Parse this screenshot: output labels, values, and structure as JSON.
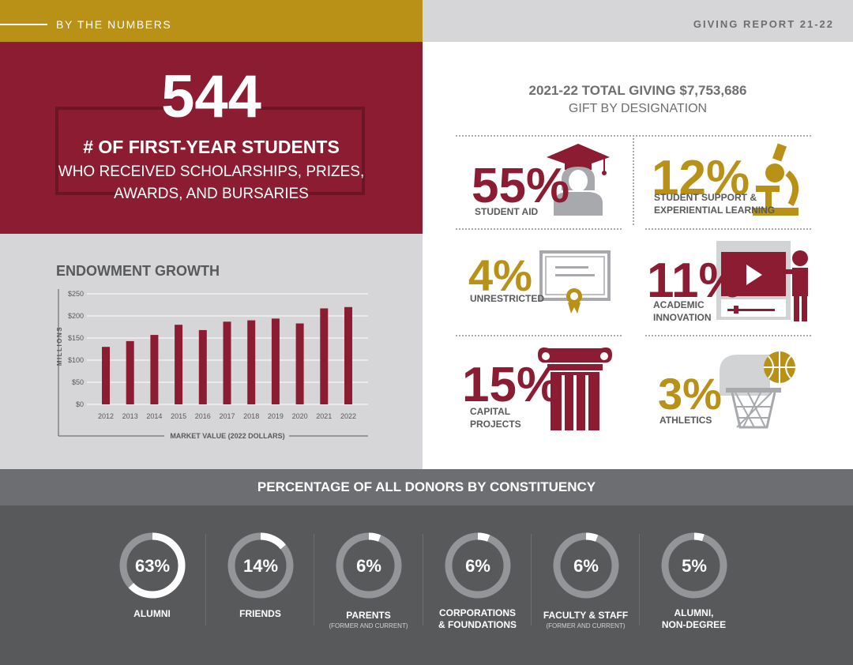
{
  "header": {
    "left_label": "BY THE NUMBERS",
    "right_label": "GIVING REPORT 21-22"
  },
  "hero": {
    "number": "544",
    "line1": "# OF FIRST-YEAR STUDENTS",
    "line2": "WHO RECEIVED SCHOLARSHIPS, PRIZES,",
    "line3": "AWARDS, AND BURSARIES"
  },
  "giving": {
    "title": "2021-22 TOTAL GIVING $7,753,686",
    "subtitle": "GIFT BY DESIGNATION",
    "items": [
      {
        "pct": "55%",
        "label1": "STUDENT AID",
        "label2": "",
        "icon": "graduate-icon"
      },
      {
        "pct": "12%",
        "label1": "STUDENT SUPPORT &",
        "label2": "EXPERIENTIAL LEARNING",
        "icon": "microscope-icon"
      },
      {
        "pct": "4%",
        "label1": "UNRESTRICTED",
        "label2": "",
        "icon": "certificate-icon"
      },
      {
        "pct": "11%",
        "label1": "ACADEMIC",
        "label2": "INNOVATION",
        "icon": "presentation-icon"
      },
      {
        "pct": "15%",
        "label1": "CAPITAL",
        "label2": "PROJECTS",
        "icon": "column-icon"
      },
      {
        "pct": "3%",
        "label1": "ATHLETICS",
        "label2": "",
        "icon": "basketball-icon"
      }
    ]
  },
  "chart_data": {
    "type": "bar",
    "title": "ENDOWMENT GROWTH",
    "xlabel": "MARKET VALUE (2022 DOLLARS)",
    "ylabel": "MILLIONS",
    "categories": [
      "2012",
      "2013",
      "2014",
      "2015",
      "2016",
      "2017",
      "2018",
      "2019",
      "2020",
      "2021",
      "2022"
    ],
    "values": [
      130,
      143,
      157,
      180,
      168,
      187,
      190,
      194,
      183,
      217,
      220
    ],
    "ylim": [
      0,
      250
    ],
    "yticks": [
      0,
      50,
      100,
      150,
      200,
      250
    ],
    "ytick_labels": [
      "$0",
      "$50",
      "$100",
      "$150",
      "$200",
      "$250"
    ],
    "grid": true,
    "bar_color": "#8b1c31"
  },
  "donors": {
    "title": "PERCENTAGE OF ALL DONORS BY CONSTITUENCY",
    "items": [
      {
        "pct": "63%",
        "value": 63,
        "label1": "ALUMNI",
        "label2": "",
        "sub": ""
      },
      {
        "pct": "14%",
        "value": 14,
        "label1": "FRIENDS",
        "label2": "",
        "sub": ""
      },
      {
        "pct": "6%",
        "value": 6,
        "label1": "PARENTS",
        "label2": "",
        "sub": "(FORMER AND CURRENT)"
      },
      {
        "pct": "6%",
        "value": 6,
        "label1": "CORPORATIONS",
        "label2": "& FOUNDATIONS",
        "sub": ""
      },
      {
        "pct": "6%",
        "value": 6,
        "label1": "FACULTY & STAFF",
        "label2": "",
        "sub": "(FORMER AND CURRENT)"
      },
      {
        "pct": "5%",
        "value": 5,
        "label1": "ALUMNI,",
        "label2": "NON-DEGREE",
        "sub": ""
      }
    ]
  },
  "colors": {
    "maroon": "#8b1c31",
    "gold": "#b99117",
    "gray_light": "#d6d6d8",
    "gray_dark": "#58595b"
  }
}
